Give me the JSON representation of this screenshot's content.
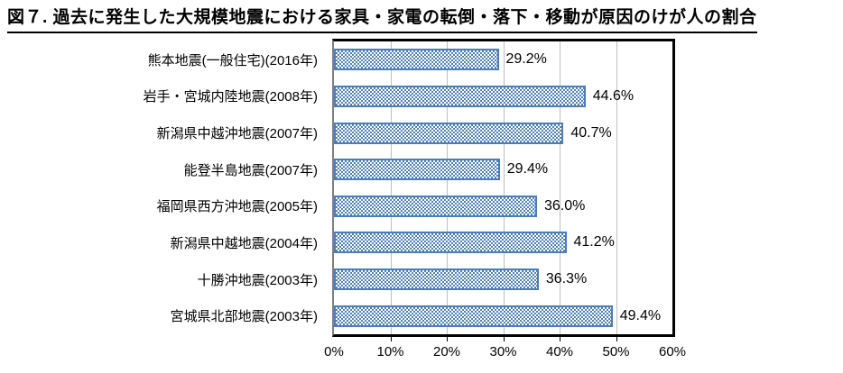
{
  "title": "図７. 過去に発生した大規模地震における家具・家電の転倒・落下・移動が原因のけが人の割合",
  "chart_data": {
    "type": "bar",
    "orientation": "horizontal",
    "title": "図７. 過去に発生した大規模地震における家具・家電の転倒・落下・移動が原因のけが人の割合",
    "categories": [
      "熊本地震(一般住宅)(2016年)",
      "岩手・宮城内陸地震(2008年)",
      "新潟県中越沖地震(2007年)",
      "能登半島地震(2007年)",
      "福岡県西方沖地震(2005年)",
      "新潟県中越地震(2004年)",
      "十勝沖地震(2003年)",
      "宮城県北部地震(2003年)"
    ],
    "values": [
      29.2,
      44.6,
      40.7,
      29.4,
      36.0,
      41.2,
      36.3,
      49.4
    ],
    "value_labels": [
      "29.2%",
      "44.6%",
      "40.7%",
      "29.4%",
      "36.0%",
      "41.2%",
      "36.3%",
      "49.4%"
    ],
    "x_tick_labels": [
      "0%",
      "10%",
      "20%",
      "30%",
      "40%",
      "50%",
      "60%"
    ],
    "xlim": [
      0,
      60
    ],
    "grid": true,
    "legend": false,
    "bar_fill_pattern": "checkerboard",
    "colors": {
      "bar_border": "#4A7EBB",
      "bar_pattern_fg": "#4F81BD",
      "bar_pattern_bg": "#FFFFFF",
      "gridline": "#BFBFBF",
      "plot_border": "#000000",
      "axis_left_line": "#808080",
      "text": "#000000"
    }
  }
}
